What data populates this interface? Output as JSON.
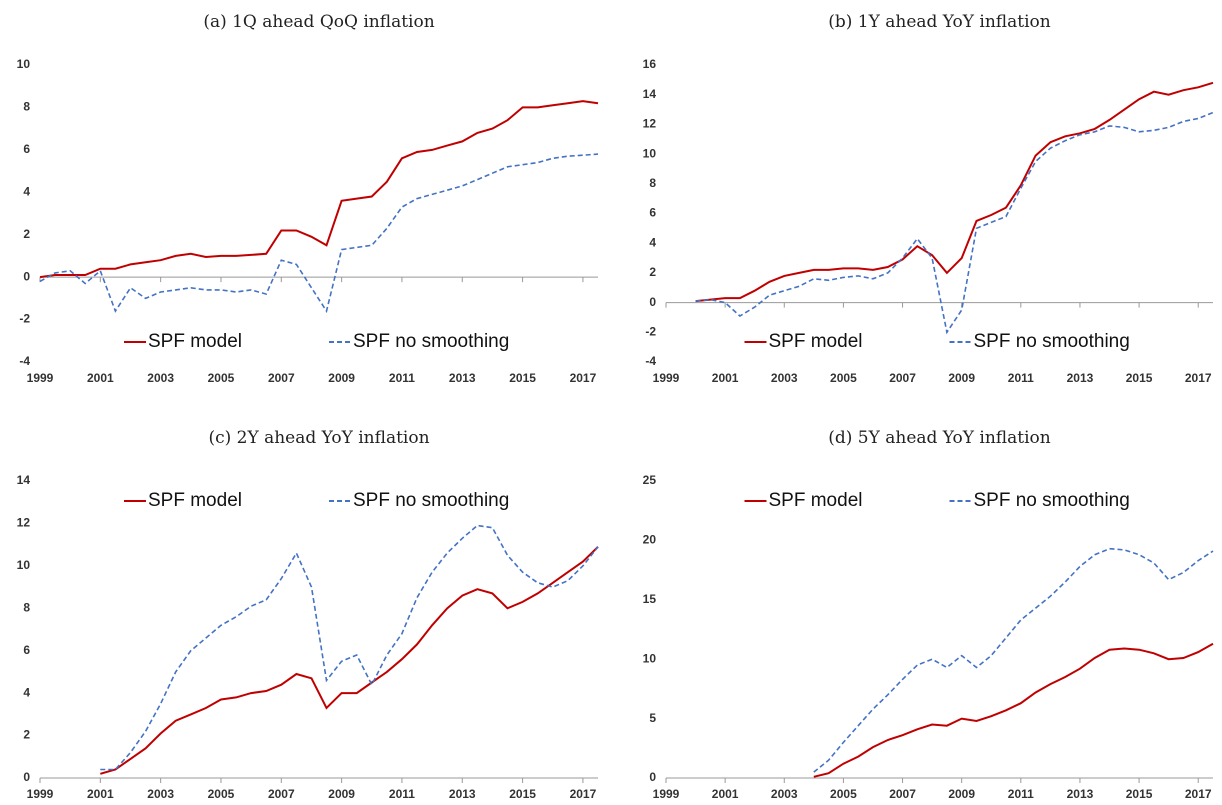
{
  "chart_data": [
    {
      "type": "line",
      "title": "(a) 1Q ahead QoQ inflation",
      "x": [
        1999,
        1999.5,
        2000,
        2000.5,
        2001,
        2001.5,
        2002,
        2002.5,
        2003,
        2003.5,
        2004,
        2004.5,
        2005,
        2005.5,
        2006,
        2006.5,
        2007,
        2007.5,
        2008,
        2008.5,
        2009,
        2009.5,
        2010,
        2010.5,
        2011,
        2011.5,
        2012,
        2012.5,
        2013,
        2013.5,
        2014,
        2014.5,
        2015,
        2015.5,
        2016,
        2016.5,
        2017,
        2017.5
      ],
      "series": [
        {
          "name": "SPF model",
          "color": "#c00000",
          "line_style": "solid",
          "values": [
            0,
            0.1,
            0.1,
            0.1,
            0.4,
            0.4,
            0.6,
            0.7,
            0.8,
            1.0,
            1.1,
            0.95,
            1.0,
            1.0,
            1.05,
            1.1,
            2.2,
            2.2,
            1.9,
            1.5,
            3.6,
            3.7,
            3.8,
            4.5,
            5.6,
            5.9,
            6.0,
            6.2,
            6.4,
            6.8,
            7.0,
            7.4,
            8.0,
            8.0,
            8.1,
            8.2,
            8.3,
            8.2
          ]
        },
        {
          "name": "SPF no smoothing",
          "color": "#4472c4",
          "line_style": "dashed",
          "values": [
            -0.2,
            0.2,
            0.3,
            -0.3,
            0.3,
            -1.6,
            -0.5,
            -1.0,
            -0.7,
            -0.6,
            -0.5,
            -0.6,
            -0.6,
            -0.7,
            -0.6,
            -0.8,
            0.8,
            0.6,
            -0.5,
            -1.6,
            1.3,
            1.4,
            1.5,
            2.3,
            3.3,
            3.7,
            3.9,
            4.1,
            4.3,
            4.6,
            4.9,
            5.2,
            5.3,
            5.4,
            5.6,
            5.7,
            5.75,
            5.8
          ]
        }
      ],
      "xlim": [
        1999,
        2017.5
      ],
      "xticks": [
        1999,
        2001,
        2003,
        2005,
        2007,
        2009,
        2011,
        2013,
        2015,
        2017
      ],
      "ylim": [
        -4,
        10
      ],
      "yticks": [
        -4,
        -2,
        0,
        2,
        4,
        6,
        8,
        10
      ],
      "legend": "lower center"
    },
    {
      "type": "line",
      "title": "(b) 1Y ahead YoY inflation",
      "x": [
        2000,
        2000.5,
        2001,
        2001.5,
        2002,
        2002.5,
        2003,
        2003.5,
        2004,
        2004.5,
        2005,
        2005.5,
        2006,
        2006.5,
        2007,
        2007.5,
        2008,
        2008.5,
        2009,
        2009.5,
        2010,
        2010.5,
        2011,
        2011.5,
        2012,
        2012.5,
        2013,
        2013.5,
        2014,
        2014.5,
        2015,
        2015.5,
        2016,
        2016.5,
        2017,
        2017.5
      ],
      "series": [
        {
          "name": "SPF model",
          "color": "#c00000",
          "line_style": "solid",
          "values": [
            0.1,
            0.2,
            0.3,
            0.3,
            0.8,
            1.4,
            1.8,
            2.0,
            2.2,
            2.2,
            2.3,
            2.3,
            2.2,
            2.4,
            2.9,
            3.8,
            3.2,
            2.0,
            3.0,
            5.5,
            5.9,
            6.4,
            7.9,
            9.9,
            10.8,
            11.2,
            11.4,
            11.7,
            12.3,
            13.0,
            13.7,
            14.2,
            14.0,
            14.3,
            14.5,
            14.8
          ]
        },
        {
          "name": "SPF no smoothing",
          "color": "#4472c4",
          "line_style": "dashed",
          "values": [
            0.1,
            0.2,
            0.0,
            -0.9,
            -0.3,
            0.5,
            0.8,
            1.1,
            1.6,
            1.5,
            1.7,
            1.8,
            1.6,
            2.0,
            3.0,
            4.3,
            3.0,
            -2.0,
            -0.5,
            5.0,
            5.4,
            5.8,
            7.7,
            9.5,
            10.4,
            10.9,
            11.3,
            11.5,
            11.9,
            11.8,
            11.5,
            11.6,
            11.8,
            12.2,
            12.4,
            12.8
          ]
        }
      ],
      "xlim": [
        1999,
        2017.5
      ],
      "xticks": [
        1999,
        2001,
        2003,
        2005,
        2007,
        2009,
        2011,
        2013,
        2015,
        2017
      ],
      "ylim": [
        -4,
        16
      ],
      "yticks": [
        -4,
        -2,
        0,
        2,
        4,
        6,
        8,
        10,
        12,
        14,
        16
      ],
      "legend": "lower center"
    },
    {
      "type": "line",
      "title": "(c) 2Y ahead YoY inflation",
      "x": [
        2001,
        2001.5,
        2002,
        2002.5,
        2003,
        2003.5,
        2004,
        2004.5,
        2005,
        2005.5,
        2006,
        2006.5,
        2007,
        2007.5,
        2008,
        2008.5,
        2009,
        2009.5,
        2010,
        2010.5,
        2011,
        2011.5,
        2012,
        2012.5,
        2013,
        2013.5,
        2014,
        2014.5,
        2015,
        2015.5,
        2016,
        2016.5,
        2017,
        2017.5
      ],
      "series": [
        {
          "name": "SPF model",
          "color": "#c00000",
          "line_style": "solid",
          "values": [
            0.2,
            0.4,
            0.9,
            1.4,
            2.1,
            2.7,
            3.0,
            3.3,
            3.7,
            3.8,
            4.0,
            4.1,
            4.4,
            4.9,
            4.7,
            3.3,
            4.0,
            4.0,
            4.5,
            5.0,
            5.6,
            6.3,
            7.2,
            8.0,
            8.6,
            8.9,
            8.7,
            8.0,
            8.3,
            8.7,
            9.2,
            9.7,
            10.2,
            10.9
          ]
        },
        {
          "name": "SPF no smoothing",
          "color": "#4472c4",
          "line_style": "dashed",
          "values": [
            0.4,
            0.4,
            1.2,
            2.2,
            3.5,
            5.0,
            6.0,
            6.6,
            7.2,
            7.6,
            8.1,
            8.4,
            9.4,
            10.6,
            9.0,
            4.6,
            5.5,
            5.8,
            4.4,
            5.8,
            6.8,
            8.5,
            9.7,
            10.6,
            11.3,
            11.9,
            11.8,
            10.5,
            9.7,
            9.2,
            9.0,
            9.3,
            10.0,
            10.9
          ]
        }
      ],
      "xlim": [
        1999,
        2017.5
      ],
      "xticks": [
        1999,
        2001,
        2003,
        2005,
        2007,
        2009,
        2011,
        2013,
        2015,
        2017
      ],
      "ylim": [
        0,
        14
      ],
      "yticks": [
        0,
        2,
        4,
        6,
        8,
        10,
        12,
        14
      ],
      "legend": "upper center"
    },
    {
      "type": "line",
      "title": "(d) 5Y ahead YoY inflation",
      "x": [
        2004,
        2004.5,
        2005,
        2005.5,
        2006,
        2006.5,
        2007,
        2007.5,
        2008,
        2008.5,
        2009,
        2009.5,
        2010,
        2010.5,
        2011,
        2011.5,
        2012,
        2012.5,
        2013,
        2013.5,
        2014,
        2014.5,
        2015,
        2015.5,
        2016,
        2016.5,
        2017,
        2017.5
      ],
      "series": [
        {
          "name": "SPF model",
          "color": "#c00000",
          "line_style": "solid",
          "values": [
            0.1,
            0.4,
            1.2,
            1.8,
            2.6,
            3.2,
            3.6,
            4.1,
            4.5,
            4.4,
            5.0,
            4.8,
            5.2,
            5.7,
            6.3,
            7.2,
            7.9,
            8.5,
            9.2,
            10.1,
            10.8,
            10.9,
            10.8,
            10.5,
            10.0,
            10.1,
            10.6,
            11.3
          ]
        },
        {
          "name": "SPF no smoothing",
          "color": "#4472c4",
          "line_style": "dashed",
          "values": [
            0.5,
            1.5,
            3.0,
            4.4,
            5.8,
            7.0,
            8.3,
            9.5,
            10.0,
            9.3,
            10.3,
            9.3,
            10.3,
            11.8,
            13.3,
            14.3,
            15.3,
            16.5,
            17.8,
            18.8,
            19.3,
            19.2,
            18.8,
            18.1,
            16.7,
            17.3,
            18.3,
            19.1
          ]
        }
      ],
      "xlim": [
        1999,
        2017.5
      ],
      "xticks": [
        1999,
        2001,
        2003,
        2005,
        2007,
        2009,
        2011,
        2013,
        2015,
        2017
      ],
      "ylim": [
        0,
        25
      ],
      "yticks": [
        0,
        5,
        10,
        15,
        20,
        25
      ],
      "legend": "upper center"
    }
  ]
}
